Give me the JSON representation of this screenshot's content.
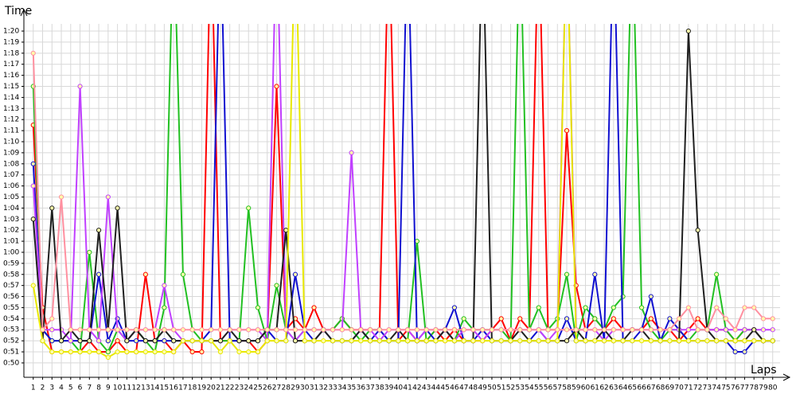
{
  "chart_data": {
    "type": "line",
    "y_label": "Time",
    "x_label": "Laps",
    "xlim": [
      0,
      81.3
    ],
    "ylim": [
      48.7,
      80.65
    ],
    "grid": true,
    "x": [
      1,
      2,
      3,
      4,
      5,
      6,
      7,
      8,
      9,
      10,
      11,
      12,
      13,
      14,
      15,
      16,
      17,
      18,
      19,
      20,
      21,
      22,
      23,
      24,
      25,
      26,
      27,
      28,
      29,
      30,
      31,
      32,
      33,
      34,
      35,
      36,
      37,
      38,
      39,
      40,
      41,
      42,
      43,
      44,
      45,
      46,
      47,
      48,
      49,
      50,
      51,
      52,
      53,
      54,
      55,
      56,
      57,
      58,
      59,
      60,
      61,
      62,
      63,
      64,
      65,
      66,
      67,
      68,
      69,
      70,
      71,
      72,
      73,
      74,
      75,
      76,
      77,
      78,
      79,
      80
    ],
    "xticks": [
      1,
      2,
      3,
      4,
      5,
      6,
      7,
      8,
      9,
      10,
      11,
      12,
      13,
      14,
      15,
      16,
      17,
      18,
      19,
      20,
      21,
      22,
      23,
      24,
      25,
      26,
      27,
      28,
      29,
      30,
      31,
      32,
      33,
      34,
      35,
      36,
      37,
      38,
      39,
      40,
      41,
      42,
      43,
      44,
      45,
      46,
      47,
      48,
      49,
      50,
      51,
      52,
      53,
      54,
      55,
      56,
      57,
      58,
      59,
      60,
      61,
      62,
      63,
      64,
      65,
      66,
      67,
      68,
      69,
      70,
      71,
      72,
      73,
      74,
      75,
      76,
      77,
      78,
      79,
      80
    ],
    "yticks": [
      {
        "value": 50,
        "label": "0:50"
      },
      {
        "value": 51,
        "label": "0:51"
      },
      {
        "value": 52,
        "label": "0:52"
      },
      {
        "value": 53,
        "label": "0:53"
      },
      {
        "value": 54,
        "label": "0:54"
      },
      {
        "value": 55,
        "label": "0:55"
      },
      {
        "value": 56,
        "label": "0:56"
      },
      {
        "value": 57,
        "label": "0:57"
      },
      {
        "value": 58,
        "label": "0:58"
      },
      {
        "value": 59,
        "label": "0:59"
      },
      {
        "value": 60,
        "label": "1:00"
      },
      {
        "value": 61,
        "label": "1:01"
      },
      {
        "value": 62,
        "label": "1:02"
      },
      {
        "value": 63,
        "label": "1:03"
      },
      {
        "value": 64,
        "label": "1:04"
      },
      {
        "value": 65,
        "label": "1:05"
      },
      {
        "value": 66,
        "label": "1:06"
      },
      {
        "value": 67,
        "label": "1:07"
      },
      {
        "value": 68,
        "label": "1:08"
      },
      {
        "value": 69,
        "label": "1:09"
      },
      {
        "value": 70,
        "label": "1:10"
      },
      {
        "value": 71,
        "label": "1:11"
      },
      {
        "value": 72,
        "label": "1:12"
      },
      {
        "value": 73,
        "label": "1:13"
      },
      {
        "value": 74,
        "label": "1:14"
      },
      {
        "value": 75,
        "label": "1:15"
      },
      {
        "value": 76,
        "label": "1:16"
      },
      {
        "value": 77,
        "label": "1:17"
      },
      {
        "value": 78,
        "label": "1:18"
      },
      {
        "value": 79,
        "label": "1:19"
      },
      {
        "value": 80,
        "label": "1:20"
      }
    ],
    "series": [
      {
        "color": "#ff0000",
        "values": [
          71.5,
          55,
          51,
          51,
          51,
          51,
          52,
          51,
          51,
          52,
          51,
          51,
          58,
          52,
          52,
          51,
          52,
          51,
          51,
          90,
          52,
          52,
          52,
          52,
          51,
          52,
          75,
          53,
          54,
          53,
          55,
          53,
          53,
          54,
          53,
          53,
          53,
          53,
          90,
          52,
          53,
          52,
          52,
          53,
          52,
          53,
          52,
          52,
          52,
          53,
          54,
          52,
          54,
          53,
          90,
          53,
          53,
          71,
          57,
          53,
          54,
          53,
          54,
          53,
          53,
          53,
          54,
          53,
          53,
          52,
          53,
          54,
          53,
          53,
          53,
          52,
          53,
          53,
          52,
          52
        ]
      },
      {
        "color": "#22c022",
        "values": [
          75,
          53,
          52,
          52,
          52,
          51,
          60,
          52,
          51,
          53,
          52,
          53,
          52,
          51,
          55,
          90,
          58,
          53,
          52,
          52,
          52,
          52,
          52,
          64,
          55,
          52,
          57,
          53,
          52,
          53,
          53,
          53,
          53,
          54,
          53,
          52,
          53,
          53,
          52,
          52,
          52,
          61,
          52,
          53,
          53,
          52,
          54,
          53,
          53,
          53,
          53,
          52,
          90,
          53,
          55,
          53,
          54,
          58,
          52,
          55,
          54,
          53,
          55,
          56,
          90,
          55,
          53,
          52,
          53,
          53,
          52,
          53,
          53,
          58,
          53,
          52,
          53,
          53,
          52,
          52
        ]
      },
      {
        "color": "#1010d0",
        "values": [
          68,
          53,
          52,
          52,
          52,
          52,
          52,
          58,
          52,
          54,
          52,
          52,
          52,
          52,
          52,
          52,
          52,
          52,
          52,
          53,
          90,
          52,
          52,
          52,
          52,
          53,
          52,
          52,
          58,
          53,
          52,
          53,
          52,
          52,
          52,
          53,
          52,
          53,
          52,
          52,
          90,
          52,
          53,
          52,
          53,
          55,
          52,
          52,
          53,
          52,
          52,
          52,
          52,
          52,
          53,
          52,
          52,
          54,
          52,
          52,
          58,
          52,
          90,
          52,
          52,
          53,
          56,
          52,
          54,
          53,
          52,
          52,
          52,
          52,
          52,
          51,
          51,
          52,
          52,
          52
        ]
      },
      {
        "color": "#c040ff",
        "values": [
          66,
          53,
          53,
          53,
          52,
          75,
          53,
          52,
          65,
          53,
          52,
          53,
          53,
          53,
          57,
          53,
          52,
          52,
          52,
          52,
          52,
          53,
          53,
          53,
          53,
          52,
          90,
          53,
          52,
          53,
          53,
          53,
          53,
          53,
          69,
          53,
          53,
          52,
          53,
          53,
          53,
          52,
          53,
          53,
          53,
          52,
          53,
          53,
          52,
          53,
          53,
          53,
          53,
          53,
          53,
          52,
          53,
          90,
          53,
          53,
          53,
          52,
          53,
          53,
          53,
          53,
          53,
          53,
          53,
          53,
          53,
          53,
          53,
          53,
          53,
          53,
          53,
          53,
          53,
          53
        ]
      },
      {
        "color": "#202020",
        "values": [
          63,
          52,
          64,
          52,
          53,
          52,
          52,
          62,
          53,
          64,
          52,
          53,
          52,
          52,
          53,
          52,
          52,
          52,
          52,
          52,
          52,
          53,
          52,
          52,
          52,
          53,
          53,
          62,
          52,
          52,
          52,
          53,
          52,
          52,
          52,
          53,
          52,
          52,
          52,
          53,
          52,
          52,
          52,
          52,
          53,
          52,
          52,
          52,
          90,
          52,
          52,
          52,
          53,
          52,
          52,
          52,
          52,
          52,
          53,
          52,
          52,
          53,
          52,
          52,
          53,
          53,
          52,
          52,
          52,
          52,
          80,
          62,
          53,
          52,
          52,
          52,
          52,
          53,
          52,
          52
        ]
      },
      {
        "color": "#e8e800",
        "values": [
          57,
          52,
          51,
          51,
          51,
          51,
          51,
          51,
          50.5,
          51,
          51,
          51,
          51,
          51,
          51,
          51,
          52,
          52,
          52,
          52,
          51,
          52,
          51,
          51,
          51,
          52,
          52,
          52,
          90,
          52,
          52,
          52,
          52,
          52,
          52,
          52,
          52,
          52,
          52,
          52,
          52,
          52,
          52,
          52,
          52,
          52,
          52,
          52,
          52,
          52,
          52,
          52,
          52,
          52,
          52,
          52,
          52,
          90,
          52,
          52,
          52,
          52,
          52,
          52,
          52,
          52,
          52,
          52,
          52,
          52,
          52,
          52,
          52,
          52,
          52,
          52,
          52,
          52,
          52,
          52
        ]
      },
      {
        "color": "#ff90a0",
        "values": [
          78,
          53,
          54,
          65,
          53,
          53,
          53,
          53,
          53,
          53,
          53,
          53,
          53,
          53,
          53,
          53,
          53,
          53,
          53,
          53,
          53,
          53,
          53,
          53,
          53,
          53,
          53,
          53,
          53,
          53,
          53,
          53,
          53,
          53,
          53,
          53,
          53,
          53,
          53,
          53,
          53,
          53,
          53,
          53,
          53,
          53,
          53,
          53,
          53,
          53,
          53,
          53,
          53,
          53,
          53,
          53,
          53,
          53,
          53,
          53,
          53,
          53,
          53,
          53,
          53,
          53,
          53,
          53,
          53,
          54,
          55,
          53,
          53,
          55,
          54,
          53,
          55,
          55,
          54,
          54
        ]
      }
    ]
  }
}
